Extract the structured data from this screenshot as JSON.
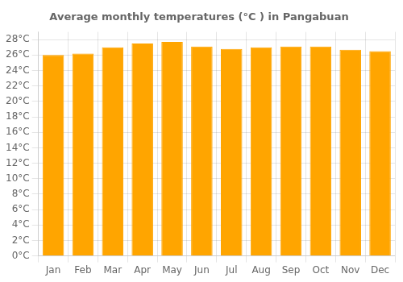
{
  "chart_data": {
    "type": "bar",
    "title": "Average monthly temperatures (°C ) in Pangabuan",
    "categories": [
      "Jan",
      "Feb",
      "Mar",
      "Apr",
      "May",
      "Jun",
      "Jul",
      "Aug",
      "Sep",
      "Oct",
      "Nov",
      "Dec"
    ],
    "values": [
      26.0,
      26.2,
      27.0,
      27.5,
      27.7,
      27.1,
      26.8,
      27.0,
      27.1,
      27.1,
      26.7,
      26.5
    ],
    "color": "#FFA500",
    "ylim": [
      0,
      29
    ],
    "yticks": [
      {
        "value": 0,
        "label": "0°C"
      },
      {
        "value": 2,
        "label": "2°C"
      },
      {
        "value": 4,
        "label": "4°C"
      },
      {
        "value": 6,
        "label": "6°C"
      },
      {
        "value": 8,
        "label": "8°C"
      },
      {
        "value": 10,
        "label": "10°C"
      },
      {
        "value": 12,
        "label": "12°C"
      },
      {
        "value": 14,
        "label": "14°C"
      },
      {
        "value": 16,
        "label": "16°C"
      },
      {
        "value": 18,
        "label": "18°C"
      },
      {
        "value": 20,
        "label": "20°C"
      },
      {
        "value": 22,
        "label": "22°C"
      },
      {
        "value": 24,
        "label": "24°C"
      },
      {
        "value": 26,
        "label": "26°C"
      },
      {
        "value": 28,
        "label": "28°C"
      }
    ],
    "grid": true
  }
}
